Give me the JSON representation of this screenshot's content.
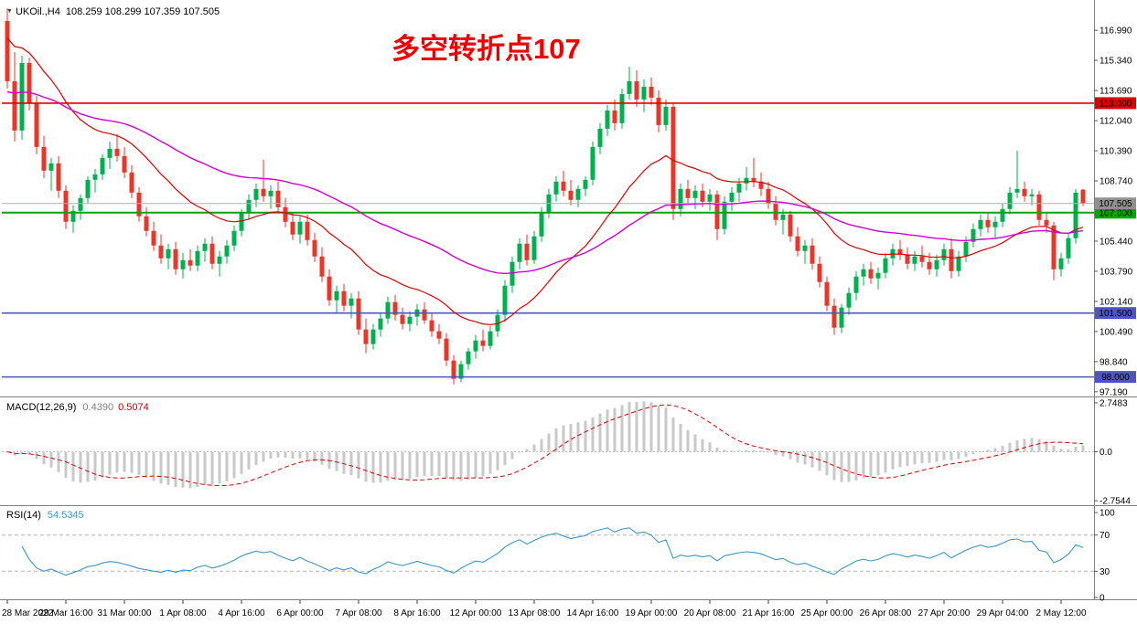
{
  "header": {
    "symbol": "UKOil.,H4",
    "ohlc": "108.259 108.299 107.359 107.505",
    "arrow_icon": "▼"
  },
  "annotation": {
    "text": "多空转折点107",
    "color": "#f20000"
  },
  "macd_panel": {
    "name": "MACD(12,26,9)",
    "value_main": "0.4390",
    "value_signal": "0.5074"
  },
  "rsi_panel": {
    "name": "RSI(14)",
    "value": "54.5345"
  },
  "chart_data": {
    "type": "candlestick",
    "symbol": "UKOil.",
    "timeframe": "H4",
    "current_bar": {
      "open": 108.259,
      "high": 108.299,
      "low": 107.359,
      "close": 107.505
    },
    "price_axis": {
      "top_price": 118.25,
      "bottom_price": 96.98,
      "tick_labels": [
        "116.990",
        "115.340",
        "113.690",
        "112.040",
        "110.390",
        "108.740",
        "105.440",
        "103.790",
        "102.140",
        "100.490",
        "98.840",
        "97.190"
      ]
    },
    "time_axis": {
      "bar_step": 8,
      "labels": [
        "28 Mar 2022",
        "29 Mar 16:00",
        "31 Mar 00:00",
        "1 Apr 08:00",
        "4 Apr 16:00",
        "6 Apr 00:00",
        "7 Apr 08:00",
        "8 Apr 16:00",
        "12 Apr 00:00",
        "13 Apr 08:00",
        "14 Apr 16:00",
        "19 Apr 00:00",
        "20 Apr 08:00",
        "21 Apr 16:00",
        "25 Apr 00:00",
        "26 Apr 08:00",
        "27 Apr 20:00",
        "29 Apr 04:00",
        "2 May 12:00"
      ]
    },
    "up_color": "#00b050",
    "down_color": "#e8362a",
    "candles": [
      [
        117.5,
        118.2,
        113.8,
        114.2
      ],
      [
        114.2,
        115.8,
        110.9,
        111.5
      ],
      [
        111.5,
        115.6,
        111.0,
        115.2
      ],
      [
        115.2,
        115.5,
        112.6,
        113.0
      ],
      [
        113.0,
        113.4,
        110.2,
        110.6
      ],
      [
        110.6,
        111.2,
        108.9,
        109.3
      ],
      [
        109.3,
        110.0,
        108.2,
        109.7
      ],
      [
        109.7,
        110.1,
        107.8,
        108.2
      ],
      [
        108.2,
        108.5,
        106.1,
        106.5
      ],
      [
        106.5,
        107.4,
        105.9,
        107.1
      ],
      [
        107.1,
        108.0,
        106.6,
        107.8
      ],
      [
        107.8,
        109.0,
        107.5,
        108.8
      ],
      [
        108.8,
        109.4,
        108.1,
        109.1
      ],
      [
        109.1,
        110.2,
        108.8,
        110.0
      ],
      [
        110.0,
        110.9,
        109.4,
        110.5
      ],
      [
        110.5,
        111.3,
        109.8,
        110.1
      ],
      [
        110.1,
        110.6,
        108.9,
        109.2
      ],
      [
        109.2,
        109.6,
        107.8,
        108.1
      ],
      [
        108.1,
        108.4,
        106.5,
        106.8
      ],
      [
        106.8,
        107.3,
        105.7,
        106.0
      ],
      [
        106.0,
        106.5,
        104.9,
        105.2
      ],
      [
        105.2,
        105.8,
        104.2,
        104.5
      ],
      [
        104.5,
        105.3,
        103.9,
        105.0
      ],
      [
        105.0,
        105.4,
        103.6,
        103.9
      ],
      [
        103.9,
        104.8,
        103.4,
        104.4
      ],
      [
        104.4,
        105.0,
        103.8,
        104.1
      ],
      [
        104.1,
        105.2,
        103.8,
        104.9
      ],
      [
        104.9,
        105.6,
        104.3,
        105.3
      ],
      [
        105.3,
        105.7,
        103.9,
        104.2
      ],
      [
        104.2,
        104.9,
        103.5,
        104.6
      ],
      [
        104.6,
        105.5,
        104.2,
        105.2
      ],
      [
        105.2,
        106.3,
        104.9,
        106.0
      ],
      [
        106.0,
        107.2,
        105.7,
        107.0
      ],
      [
        107.0,
        108.0,
        106.6,
        107.7
      ],
      [
        107.7,
        108.6,
        107.3,
        108.3
      ],
      [
        108.3,
        109.9,
        107.6,
        107.9
      ],
      [
        107.9,
        108.5,
        107.2,
        108.2
      ],
      [
        108.2,
        108.7,
        107.0,
        107.3
      ],
      [
        107.3,
        107.8,
        106.2,
        106.5
      ],
      [
        106.5,
        107.0,
        105.5,
        105.8
      ],
      [
        105.8,
        106.8,
        105.3,
        106.5
      ],
      [
        106.5,
        106.9,
        105.2,
        105.5
      ],
      [
        105.5,
        105.9,
        104.3,
        104.6
      ],
      [
        104.6,
        105.1,
        103.2,
        103.5
      ],
      [
        103.5,
        103.9,
        101.9,
        102.2
      ],
      [
        102.2,
        103.0,
        101.5,
        102.7
      ],
      [
        102.7,
        103.1,
        101.6,
        101.9
      ],
      [
        101.9,
        102.6,
        101.2,
        102.3
      ],
      [
        102.3,
        102.7,
        100.3,
        100.6
      ],
      [
        100.6,
        101.2,
        99.3,
        99.8
      ],
      [
        99.8,
        100.9,
        99.5,
        100.6
      ],
      [
        100.6,
        101.5,
        100.2,
        101.2
      ],
      [
        101.2,
        102.4,
        100.9,
        102.1
      ],
      [
        102.1,
        102.5,
        101.1,
        101.4
      ],
      [
        101.4,
        101.8,
        100.6,
        100.9
      ],
      [
        100.9,
        101.6,
        100.5,
        101.3
      ],
      [
        101.3,
        102.0,
        100.8,
        101.7
      ],
      [
        101.7,
        102.1,
        100.9,
        101.1
      ],
      [
        101.1,
        101.5,
        100.2,
        100.5
      ],
      [
        100.5,
        100.9,
        99.8,
        100.1
      ],
      [
        100.1,
        100.4,
        98.6,
        98.9
      ],
      [
        98.9,
        99.2,
        97.6,
        97.9
      ],
      [
        97.9,
        98.9,
        97.7,
        98.7
      ],
      [
        98.7,
        99.6,
        98.4,
        99.4
      ],
      [
        99.4,
        100.3,
        99.0,
        100.0
      ],
      [
        100.0,
        100.6,
        99.4,
        99.7
      ],
      [
        99.7,
        100.8,
        99.5,
        100.5
      ],
      [
        100.5,
        101.7,
        100.2,
        101.4
      ],
      [
        101.4,
        103.3,
        101.0,
        103.0
      ],
      [
        103.0,
        104.6,
        102.6,
        104.3
      ],
      [
        104.3,
        105.6,
        103.9,
        105.3
      ],
      [
        105.3,
        105.8,
        104.1,
        104.4
      ],
      [
        104.4,
        106.0,
        104.2,
        105.7
      ],
      [
        105.7,
        107.3,
        105.4,
        107.0
      ],
      [
        107.0,
        108.3,
        106.7,
        108.0
      ],
      [
        108.0,
        109.0,
        107.6,
        108.7
      ],
      [
        108.7,
        109.3,
        107.9,
        108.2
      ],
      [
        108.2,
        108.8,
        107.4,
        107.7
      ],
      [
        107.7,
        108.5,
        107.3,
        108.3
      ],
      [
        108.3,
        109.0,
        107.9,
        108.8
      ],
      [
        108.8,
        110.9,
        108.5,
        110.6
      ],
      [
        110.6,
        111.9,
        110.2,
        111.6
      ],
      [
        111.6,
        112.9,
        111.2,
        112.6
      ],
      [
        112.6,
        113.2,
        111.5,
        111.9
      ],
      [
        111.9,
        113.8,
        111.6,
        113.5
      ],
      [
        113.5,
        115.0,
        113.2,
        114.2
      ],
      [
        114.2,
        114.8,
        112.8,
        113.2
      ],
      [
        113.2,
        114.3,
        112.5,
        113.9
      ],
      [
        113.9,
        114.4,
        112.9,
        113.3
      ],
      [
        113.3,
        113.7,
        111.4,
        111.8
      ],
      [
        111.8,
        113.2,
        111.5,
        112.8
      ],
      [
        112.8,
        113.0,
        106.6,
        107.2
      ],
      [
        107.2,
        108.6,
        106.8,
        108.3
      ],
      [
        108.3,
        108.8,
        107.5,
        107.8
      ],
      [
        107.8,
        108.5,
        107.2,
        108.2
      ],
      [
        108.2,
        108.6,
        107.3,
        107.6
      ],
      [
        107.6,
        108.3,
        107.1,
        108.0
      ],
      [
        108.0,
        108.2,
        105.5,
        106.1
      ],
      [
        106.1,
        107.9,
        105.8,
        107.6
      ],
      [
        107.6,
        108.4,
        107.1,
        108.1
      ],
      [
        108.1,
        108.9,
        107.6,
        108.6
      ],
      [
        108.6,
        109.5,
        108.2,
        108.9
      ],
      [
        108.9,
        110.0,
        108.4,
        108.7
      ],
      [
        108.7,
        109.2,
        107.9,
        108.3
      ],
      [
        108.3,
        108.7,
        107.2,
        107.5
      ],
      [
        107.5,
        107.9,
        106.3,
        106.6
      ],
      [
        106.6,
        107.2,
        105.8,
        106.9
      ],
      [
        106.9,
        107.1,
        105.4,
        105.7
      ],
      [
        105.7,
        106.2,
        104.6,
        104.9
      ],
      [
        104.9,
        105.5,
        104.2,
        105.2
      ],
      [
        105.2,
        105.6,
        103.9,
        104.2
      ],
      [
        104.2,
        104.6,
        102.9,
        103.2
      ],
      [
        103.2,
        103.5,
        101.6,
        101.9
      ],
      [
        101.9,
        102.3,
        100.3,
        100.7
      ],
      [
        100.7,
        102.0,
        100.4,
        101.8
      ],
      [
        101.8,
        102.9,
        101.4,
        102.6
      ],
      [
        102.6,
        103.8,
        102.2,
        103.5
      ],
      [
        103.5,
        104.2,
        103.0,
        103.9
      ],
      [
        103.9,
        104.3,
        103.1,
        103.4
      ],
      [
        103.4,
        104.0,
        102.8,
        103.7
      ],
      [
        103.7,
        104.8,
        103.4,
        104.5
      ],
      [
        104.5,
        105.3,
        104.1,
        105.0
      ],
      [
        105.0,
        105.5,
        104.4,
        104.7
      ],
      [
        104.7,
        105.1,
        103.9,
        104.2
      ],
      [
        104.2,
        104.9,
        103.8,
        104.6
      ],
      [
        104.6,
        105.2,
        104.0,
        104.3
      ],
      [
        104.3,
        104.8,
        103.6,
        103.9
      ],
      [
        103.9,
        104.7,
        103.5,
        104.4
      ],
      [
        104.4,
        105.3,
        104.1,
        105.0
      ],
      [
        105.0,
        105.6,
        103.4,
        103.8
      ],
      [
        103.8,
        104.9,
        103.5,
        104.6
      ],
      [
        104.6,
        105.7,
        104.3,
        105.4
      ],
      [
        105.4,
        106.4,
        105.1,
        106.1
      ],
      [
        106.1,
        106.9,
        105.7,
        106.6
      ],
      [
        106.6,
        107.0,
        105.9,
        106.2
      ],
      [
        106.2,
        106.8,
        105.6,
        106.5
      ],
      [
        106.5,
        107.5,
        106.2,
        107.2
      ],
      [
        107.2,
        108.4,
        106.9,
        108.1
      ],
      [
        108.1,
        110.4,
        107.8,
        108.3
      ],
      [
        108.3,
        108.7,
        107.6,
        107.9
      ],
      [
        107.9,
        108.3,
        107.4,
        108.0
      ],
      [
        108.0,
        108.2,
        106.3,
        106.6
      ],
      [
        106.6,
        107.0,
        105.9,
        106.3
      ],
      [
        106.3,
        106.5,
        103.3,
        103.9
      ],
      [
        103.9,
        104.8,
        103.5,
        104.5
      ],
      [
        104.5,
        105.9,
        104.2,
        105.6
      ],
      [
        105.6,
        108.3,
        105.3,
        108.1
      ],
      [
        108.259,
        108.299,
        107.359,
        107.505
      ]
    ],
    "hlines": [
      {
        "price": 113.0,
        "label": "113.000",
        "color": "#e00000",
        "width": 1.6
      },
      {
        "price": 107.0,
        "label": "107.000",
        "color": "#00a800",
        "width": 2
      },
      {
        "price": 101.5,
        "label": "101.500",
        "color": "#4f55c0",
        "width": 1.6
      },
      {
        "price": 98.0,
        "label": "98.000",
        "color": "#4f55c0",
        "width": 1.6
      }
    ],
    "price_line": {
      "price": 107.505,
      "label": "107.505",
      "line_color": "#b0b0b0",
      "badge_color": "#909090"
    },
    "moving_averages": [
      {
        "period": 21,
        "seed": 116.8,
        "color": "#e00000",
        "width": 1.2
      },
      {
        "period": 55,
        "seed": 113.6,
        "color": "#d400d4",
        "width": 1.4
      }
    ],
    "macd": {
      "fast": 12,
      "slow": 26,
      "signal": 9,
      "scale_labels": [
        "2.7483",
        "0.0",
        "-2.7544"
      ],
      "scale_max": 2.9,
      "hist_color": "#c9c9c9",
      "signal_color": "#e00000"
    },
    "rsi": {
      "period": 14,
      "levels": [
        70,
        30
      ],
      "scale_labels": [
        "100",
        "70",
        "30",
        "0"
      ],
      "color": "#3a96cd"
    }
  }
}
